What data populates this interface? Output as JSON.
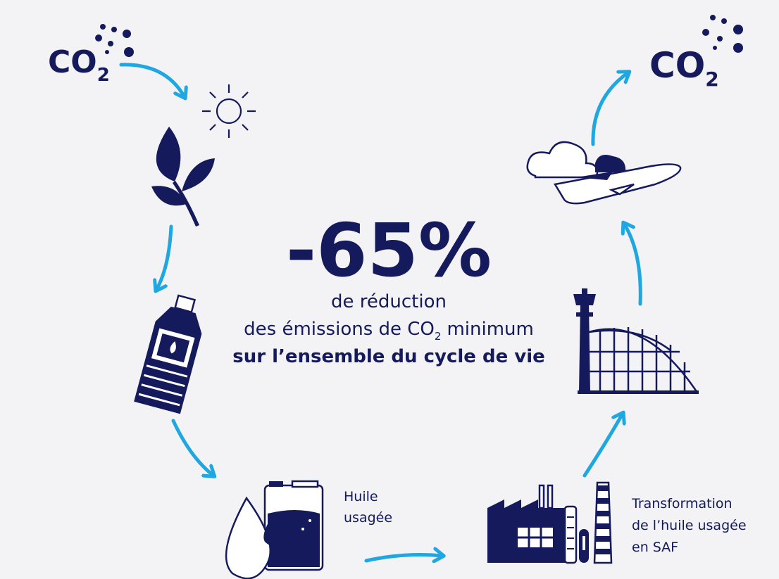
{
  "co2_left": {
    "main": "CO",
    "sub": "2"
  },
  "co2_right": {
    "main": "CO",
    "sub": "2"
  },
  "headline": "-65%",
  "center_lines": {
    "line1": "de réduction",
    "line2": {
      "before": "des émissions de CO",
      "sub": "2",
      "after": "minimum"
    },
    "line3": "sur l’ensemble du cycle de vie"
  },
  "step_oil": [
    "Huile",
    "usagée"
  ],
  "step_transformation": [
    "Transformation",
    "de l’huile usagée",
    "en SAF"
  ]
}
